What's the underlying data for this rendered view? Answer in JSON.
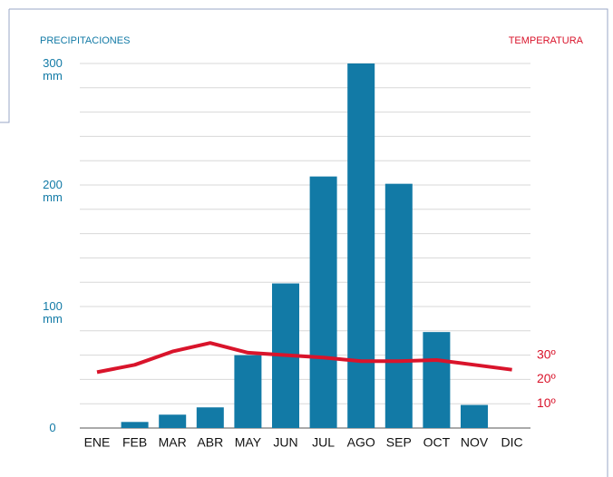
{
  "chart_data": {
    "type": "bar",
    "y_axis_title": "PRECIPITACIONES",
    "y2_axis_title": "TEMPERATURA",
    "categories": [
      "ENE",
      "FEB",
      "MAR",
      "ABR",
      "MAY",
      "JUN",
      "JUL",
      "AGO",
      "SEP",
      "OCT",
      "NOV",
      "DIC"
    ],
    "series": [
      {
        "name": "PRECIPITACIONES",
        "type": "bar",
        "color": "#127aa6",
        "values": [
          0,
          5,
          11,
          17,
          60,
          119,
          207,
          300,
          201,
          79,
          19,
          0
        ]
      },
      {
        "name": "TEMPERATURA",
        "type": "line",
        "axis": "y2",
        "color": "#d9142b",
        "values": [
          23,
          26,
          31.5,
          35,
          31,
          30,
          29,
          27.5,
          27.5,
          28,
          26,
          24
        ]
      }
    ],
    "ylim": [
      0,
      300
    ],
    "yticks": [
      0,
      {
        "value": 100,
        "label": "100\nmm"
      },
      {
        "value": 200,
        "label": "200\nmm"
      },
      {
        "value": 300,
        "label": "300\nmm"
      }
    ],
    "minor_yticks": [
      20,
      40,
      60,
      80,
      120,
      140,
      160,
      180,
      220,
      240,
      260,
      280
    ],
    "y2lim": [
      0,
      150
    ],
    "y2ticks": [
      {
        "value": 10,
        "label": "10º"
      },
      {
        "value": 20,
        "label": "20º"
      },
      {
        "value": 30,
        "label": "30º"
      }
    ],
    "grid": true
  }
}
